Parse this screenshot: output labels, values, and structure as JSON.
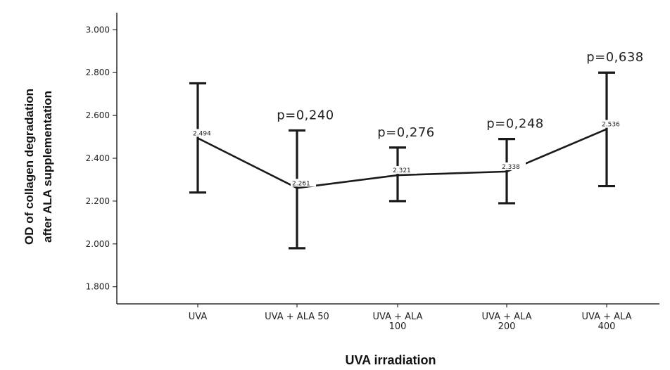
{
  "chart_data": {
    "type": "line",
    "title": "",
    "xlabel": "UVA irradiation",
    "ylabel_lines": [
      "OD of collagen degradation",
      "after ALA supplementation"
    ],
    "categories": [
      [
        "UVA"
      ],
      [
        "UVA + ALA 50"
      ],
      [
        "UVA + ALA",
        "100"
      ],
      [
        "UVA + ALA",
        "200"
      ],
      [
        "UVA + ALA",
        "400"
      ]
    ],
    "means": [
      2.494,
      2.261,
      2.321,
      2.338,
      2.536
    ],
    "mean_labels": [
      "2.494",
      "2.261",
      "2.321",
      "2.338",
      "2.536"
    ],
    "error_upper": [
      2.75,
      2.53,
      2.45,
      2.49,
      2.8
    ],
    "error_lower": [
      2.24,
      1.98,
      2.2,
      2.19,
      2.27
    ],
    "p_values": [
      "",
      "p=0,240",
      "p=0,276",
      "p=0,248",
      "p=0,638"
    ],
    "ylim": [
      1.72,
      3.08
    ],
    "yticks": [
      1.8,
      2.0,
      2.2,
      2.4,
      2.6,
      2.8,
      3.0
    ],
    "ytick_labels": [
      "1.800",
      "2.000",
      "2.200",
      "2.400",
      "2.600",
      "2.800",
      "3.000"
    ],
    "grid": false,
    "legend": "none"
  }
}
